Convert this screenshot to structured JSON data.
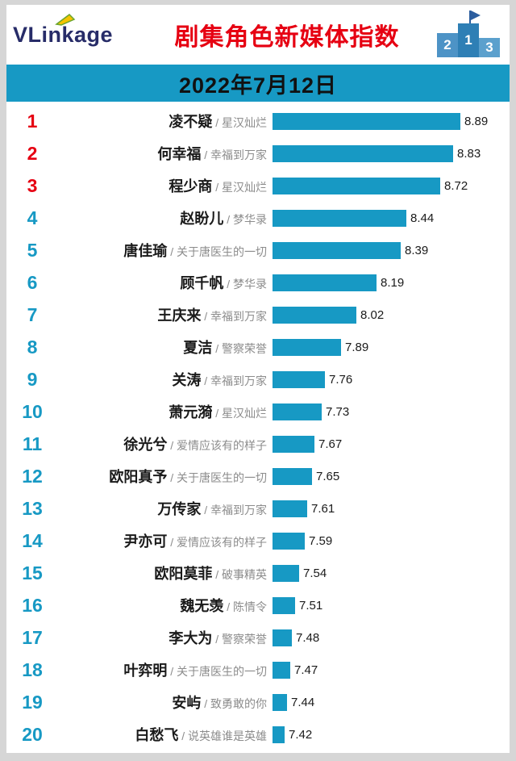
{
  "meta": {
    "brand": "VLinkage",
    "title": "剧集角色新媒体指数",
    "date": "2022年7月12日"
  },
  "colors": {
    "accent_teal": "#1799c4",
    "accent_red": "#e60012",
    "drama_gray": "#8c8c8c",
    "logo_navy": "#272c68"
  },
  "list": {
    "separator": " / "
  },
  "chart_data": {
    "type": "bar",
    "orientation": "horizontal",
    "title": "剧集角色新媒体指数",
    "subtitle": "2022年7月12日",
    "xlim": [
      7.32,
      8.95
    ],
    "value_label_format": "0.00",
    "legend": "none",
    "grid": false,
    "podium_numbers": [
      "2",
      "1",
      "3"
    ],
    "entries": [
      {
        "rank": 1,
        "name": "凌不疑",
        "drama": "星汉灿烂",
        "value": 8.89
      },
      {
        "rank": 2,
        "name": "何幸福",
        "drama": "幸福到万家",
        "value": 8.83
      },
      {
        "rank": 3,
        "name": "程少商",
        "drama": "星汉灿烂",
        "value": 8.72
      },
      {
        "rank": 4,
        "name": "赵盼儿",
        "drama": "梦华录",
        "value": 8.44
      },
      {
        "rank": 5,
        "name": "唐佳瑜",
        "drama": "关于唐医生的一切",
        "value": 8.39
      },
      {
        "rank": 6,
        "name": "顾千帆",
        "drama": "梦华录",
        "value": 8.19
      },
      {
        "rank": 7,
        "name": "王庆来",
        "drama": "幸福到万家",
        "value": 8.02
      },
      {
        "rank": 8,
        "name": "夏洁",
        "drama": "警察荣誉",
        "value": 7.89
      },
      {
        "rank": 9,
        "name": "关涛",
        "drama": "幸福到万家",
        "value": 7.76
      },
      {
        "rank": 10,
        "name": "萧元漪",
        "drama": "星汉灿烂",
        "value": 7.73
      },
      {
        "rank": 11,
        "name": "徐光兮",
        "drama": "爱情应该有的样子",
        "value": 7.67
      },
      {
        "rank": 12,
        "name": "欧阳真予",
        "drama": "关于唐医生的一切",
        "value": 7.65
      },
      {
        "rank": 13,
        "name": "万传家",
        "drama": "幸福到万家",
        "value": 7.61
      },
      {
        "rank": 14,
        "name": "尹亦可",
        "drama": "爱情应该有的样子",
        "value": 7.59
      },
      {
        "rank": 15,
        "name": "欧阳莫菲",
        "drama": "破事精英",
        "value": 7.54
      },
      {
        "rank": 16,
        "name": "魏无羡",
        "drama": "陈情令",
        "value": 7.51
      },
      {
        "rank": 17,
        "name": "李大为",
        "drama": "警察荣誉",
        "value": 7.48
      },
      {
        "rank": 18,
        "name": "叶弈明",
        "drama": "关于唐医生的一切",
        "value": 7.47
      },
      {
        "rank": 19,
        "name": "安屿",
        "drama": "致勇敢的你",
        "value": 7.44
      },
      {
        "rank": 20,
        "name": "白愁飞",
        "drama": "说英雄谁是英雄",
        "value": 7.42
      }
    ]
  }
}
